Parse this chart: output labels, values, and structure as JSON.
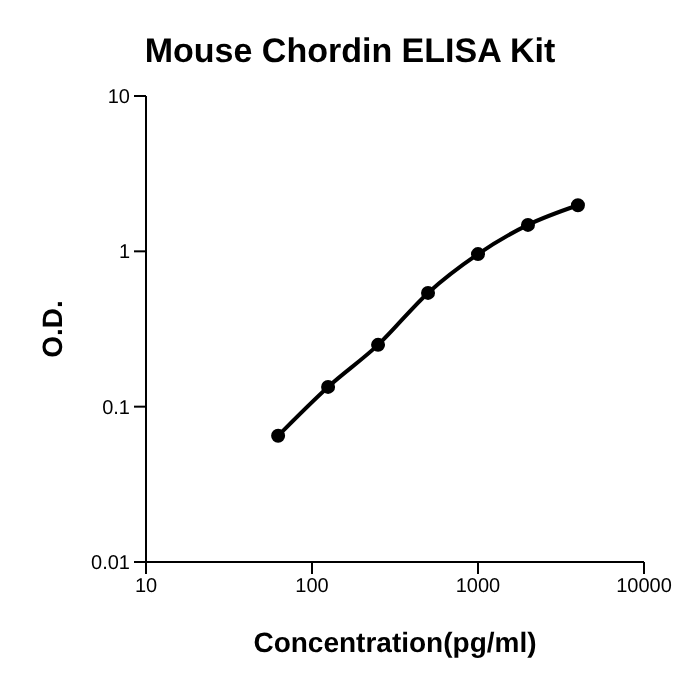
{
  "chart_data": {
    "type": "line",
    "title": "Mouse Chordin ELISA Kit",
    "xlabel": "Concentration(pg/ml)",
    "ylabel": "O.D.",
    "log": "xy",
    "x": [
      62.5,
      125,
      250,
      500,
      1000,
      2000,
      4000
    ],
    "series": [
      {
        "color": "#000000",
        "values": [
          0.065,
          0.134,
          0.25,
          0.54,
          0.96,
          1.48,
          1.98
        ]
      }
    ],
    "xlim": [
      10,
      10000
    ],
    "xticks": [
      10,
      100,
      1000,
      10000
    ],
    "ylim": [
      0.01,
      10
    ],
    "yticks": [
      0.01,
      0.1,
      1,
      10
    ],
    "grid": false,
    "legend": false,
    "marker": "circle",
    "line_style": "solid"
  }
}
